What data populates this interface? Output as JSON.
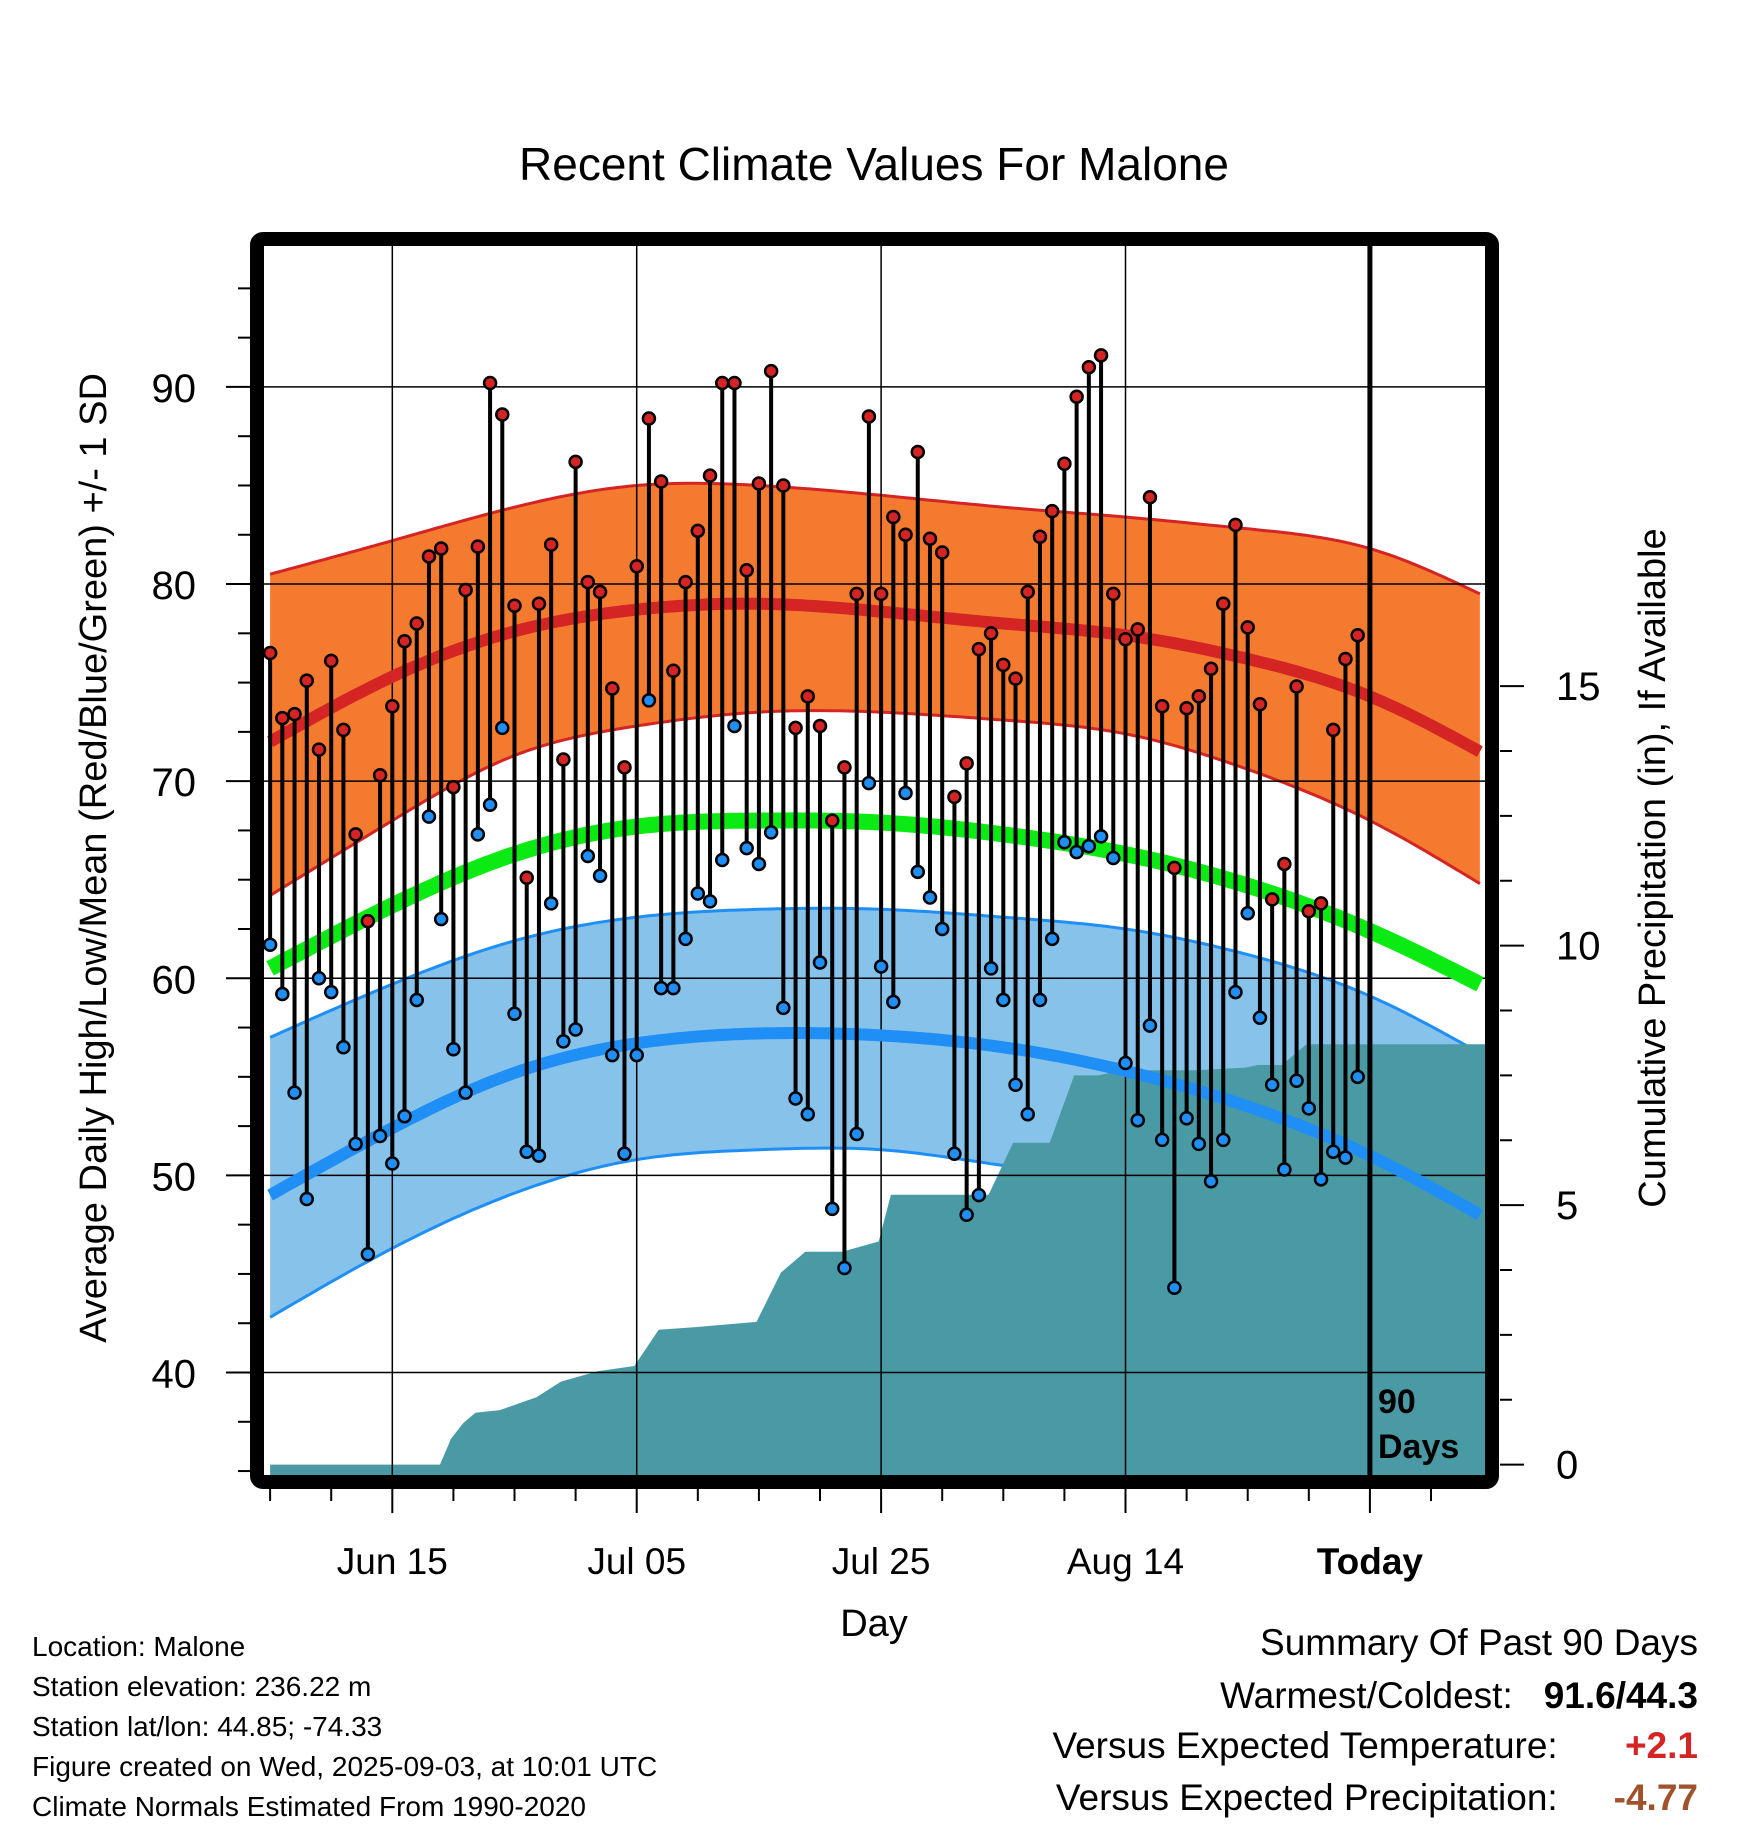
{
  "colors": {
    "high_band": "#f47a30",
    "high_line": "#d42424",
    "low_band": "#86c2ea",
    "low_line": "#1f8ff5",
    "mean_line": "#0bea12",
    "precip_fill": "#4a9aa5",
    "high_dot": "#d42424",
    "low_dot": "#1f8ff5",
    "positive_anomaly": "#d42424",
    "negative_precip": "#a0522d"
  },
  "chart_data": {
    "type": "line",
    "title": "Recent Climate Values For Malone",
    "xlabel": "Day",
    "ylabel": "Average Daily High/Low/Mean (Red/Blue/Green) +/- 1 SD",
    "y2label": "Cumulative Precipitation (in), If Available",
    "ylim": [
      34.8,
      97.2
    ],
    "y2lim": [
      -0.2,
      23.5
    ],
    "xlim": [
      -0.5,
      99.5
    ],
    "y_ticks": [
      40,
      50,
      60,
      70,
      80,
      90
    ],
    "y2_ticks": [
      0,
      5,
      10,
      15
    ],
    "x_tick_labels": [
      "Jun 15",
      "Jul 05",
      "Jul 25",
      "Aug 14",
      "Today"
    ],
    "x_ticks": [
      10,
      30,
      50,
      70,
      90
    ],
    "today_marker": {
      "x": 90,
      "label_line1": "90",
      "label_line2": "Days"
    },
    "grid": true,
    "normals": {
      "high_mean": {
        "x": [
          0,
          10,
          20,
          30,
          40,
          50,
          60,
          70,
          80,
          90,
          99
        ],
        "y": [
          72,
          75.3,
          77.6,
          78.7,
          79,
          78.6,
          78,
          77.4,
          76.2,
          74.3,
          71.5
        ]
      },
      "high_upper": {
        "x": [
          0,
          10,
          20,
          30,
          40,
          50,
          60,
          70,
          80,
          90,
          99
        ],
        "y": [
          80.5,
          82.2,
          83.9,
          85,
          85,
          84.5,
          83.9,
          83.4,
          82.8,
          81.8,
          79.5
        ]
      },
      "high_lower": {
        "x": [
          0,
          10,
          20,
          30,
          40,
          50,
          60,
          70,
          80,
          90,
          99
        ],
        "y": [
          64.2,
          68,
          71.3,
          72.8,
          73.5,
          73.5,
          73.1,
          72.4,
          70.6,
          68,
          64.8
        ]
      },
      "mean": {
        "x": [
          0,
          10,
          20,
          30,
          40,
          50,
          60,
          70,
          80,
          90,
          99
        ],
        "y": [
          60.5,
          63.7,
          66.3,
          67.7,
          68,
          67.9,
          67.3,
          66.3,
          64.7,
          62.4,
          59.7
        ]
      },
      "low_mean": {
        "x": [
          0,
          10,
          20,
          30,
          40,
          50,
          60,
          70,
          80,
          90,
          99
        ],
        "y": [
          49,
          52.4,
          55.2,
          56.7,
          57.2,
          57.1,
          56.5,
          55.3,
          53.5,
          51,
          48
        ]
      },
      "low_upper": {
        "x": [
          0,
          10,
          20,
          30,
          40,
          50,
          60,
          70,
          80,
          90,
          99
        ],
        "y": [
          57,
          59.7,
          61.9,
          63.1,
          63.5,
          63.5,
          63.1,
          62.5,
          61.2,
          59.1,
          56.2
        ]
      },
      "low_lower": {
        "x": [
          0,
          10,
          20,
          30,
          40,
          50,
          60,
          70,
          80,
          90,
          99
        ],
        "y": [
          42.8,
          46.3,
          49.1,
          50.8,
          51.3,
          51.3,
          50.5,
          49.4,
          46.9,
          43.6,
          40
        ]
      }
    },
    "series": [
      {
        "name": "High",
        "values": [
          76.5,
          73.2,
          73.4,
          75.1,
          71.6,
          76.1,
          72.6,
          67.3,
          62.9,
          70.3,
          73.8,
          77.1,
          78,
          81.4,
          81.8,
          69.7,
          79.7,
          81.9,
          90.2,
          88.6,
          78.9,
          65.1,
          79,
          82,
          71.1,
          86.2,
          80.1,
          79.6,
          74.7,
          70.7,
          80.9,
          88.4,
          85.2,
          75.6,
          80.1,
          82.7,
          85.5,
          90.2,
          90.2,
          80.7,
          85.1,
          90.8,
          85,
          72.7,
          74.3,
          72.8,
          68,
          70.7,
          79.5,
          88.5,
          79.5,
          83.4,
          82.5,
          86.7,
          82.3,
          81.6,
          69.2,
          70.9,
          76.7,
          77.5,
          75.9,
          75.2,
          79.6,
          82.4,
          83.7,
          86.1,
          89.5,
          91,
          91.6,
          79.5,
          77.2,
          77.7,
          84.4,
          73.8,
          65.6,
          73.7,
          74.3,
          75.7,
          79,
          83,
          77.8,
          73.9,
          64,
          65.8,
          74.8,
          63.4,
          63.8,
          72.6,
          76.2,
          77.4
        ]
      },
      {
        "name": "Low",
        "values": [
          61.7,
          59.2,
          54.2,
          48.8,
          60,
          59.3,
          56.5,
          51.6,
          46,
          52,
          50.6,
          53,
          58.9,
          68.2,
          63,
          56.4,
          54.2,
          67.3,
          68.8,
          72.7,
          58.2,
          51.2,
          51,
          63.8,
          56.8,
          57.4,
          66.2,
          65.2,
          56.1,
          51.1,
          56.1,
          74.1,
          59.5,
          59.5,
          62,
          64.3,
          63.9,
          66,
          72.8,
          66.6,
          65.8,
          67.4,
          58.5,
          53.9,
          53.1,
          60.8,
          48.3,
          45.3,
          52.1,
          69.9,
          60.6,
          58.8,
          69.4,
          65.4,
          64.1,
          62.5,
          51.1,
          48,
          49,
          60.5,
          58.9,
          54.6,
          53.1,
          58.9,
          62,
          66.9,
          66.4,
          66.7,
          67.2,
          66.1,
          55.7,
          52.8,
          57.6,
          51.8,
          44.3,
          52.9,
          51.6,
          49.7,
          51.8,
          59.3,
          63.3,
          58,
          54.6,
          50.3,
          54.8,
          53.4,
          49.8,
          51.2,
          50.9,
          55
        ]
      },
      {
        "name": "Cumulative Precipitation",
        "x": [
          0,
          13.9,
          14.8,
          15.8,
          16.8,
          18.8,
          21.8,
          23.8,
          26.8,
          29.8,
          31.8,
          34.8,
          39.8,
          41.8,
          43.8,
          46.8,
          49.8,
          50.8,
          52.8,
          58.8,
          60.8,
          63.8,
          65.8,
          67.8,
          68.8,
          71.8,
          72.8,
          75.8,
          79.8,
          80.8,
          82.8,
          84.8,
          85.8,
          88.8,
          99.5
        ],
        "values": [
          0,
          0,
          0.5,
          0.8,
          1,
          1.05,
          1.3,
          1.6,
          1.8,
          1.9,
          2.6,
          2.65,
          2.75,
          3.7,
          4.1,
          4.1,
          4.3,
          5.2,
          5.2,
          5.2,
          6.2,
          6.2,
          7.5,
          7.5,
          7.55,
          7.6,
          7.6,
          7.6,
          7.65,
          7.7,
          7.7,
          8.1,
          8.1,
          8.1,
          8.1
        ]
      }
    ]
  },
  "info": {
    "location": "Location: Malone",
    "elevation": "Station elevation: 236.22 m",
    "latlon": "Station lat/lon: 44.85; -74.33",
    "created": "Figure created on Wed, 2025-09-03, at 10:01 UTC",
    "normals": "Climate Normals Estimated From 1990-2020"
  },
  "summary": {
    "title": "Summary Of Past 90 Days",
    "warm_cold_label": "Warmest/Coldest:",
    "warm_cold_value": "91.6/44.3",
    "temp_label": "Versus Expected Temperature:",
    "temp_value": "+2.1",
    "precip_label": "Versus Expected Precipitation:",
    "precip_value": "-4.77"
  }
}
